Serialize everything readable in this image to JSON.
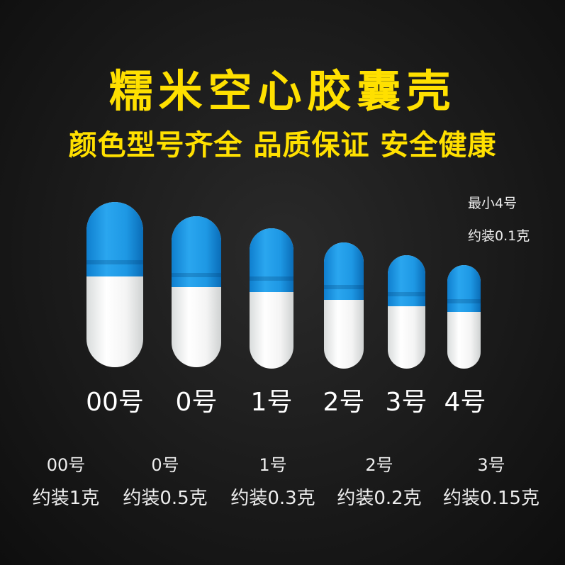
{
  "title": "糯米空心胶囊壳",
  "subtitle": "颜色型号齐全 品质保证 安全健康",
  "note": {
    "size": "最小4号",
    "weight": "约装0.1克"
  },
  "colors": {
    "title": "#ffe000",
    "capsule_cap": "#1e98e4",
    "capsule_body": "#ffffff",
    "background": "#161616"
  },
  "capsules": [
    {
      "label": "00号"
    },
    {
      "label": "0号"
    },
    {
      "label": "1号"
    },
    {
      "label": "2号"
    },
    {
      "label": "3号"
    },
    {
      "label": "4号"
    }
  ],
  "weights": [
    {
      "size": "00号",
      "weight": "约装1克"
    },
    {
      "size": "0号",
      "weight": "约装0.5克"
    },
    {
      "size": "1号",
      "weight": "约装0.3克"
    },
    {
      "size": "2号",
      "weight": "约装0.2克"
    },
    {
      "size": "3号",
      "weight": "约装0.15克"
    }
  ]
}
